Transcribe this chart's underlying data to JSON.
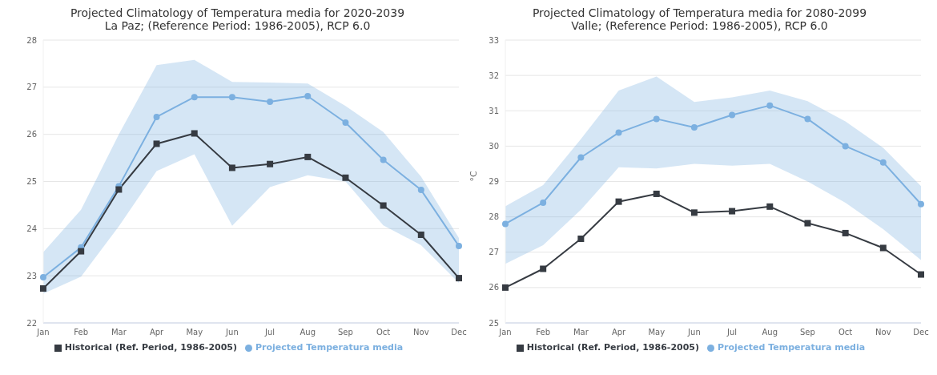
{
  "chart_data": [
    {
      "type": "line",
      "title": "Projected Climatology of Temperatura media for 2020-2039",
      "subtitle": "La Paz; (Reference Period: 1986-2005), RCP 6.0",
      "categories": [
        "Jan",
        "Feb",
        "Mar",
        "Apr",
        "May",
        "Jun",
        "Jul",
        "Aug",
        "Sep",
        "Oct",
        "Nov",
        "Dec"
      ],
      "ylim": [
        22,
        28
      ],
      "yticks": [
        22,
        23,
        24,
        25,
        26,
        27,
        28
      ],
      "grid": "y",
      "legend": "bottom",
      "series": [
        {
          "name": "Projected Temperatura media",
          "color": "#7cb0e0",
          "marker": "circle",
          "values": [
            22.97,
            23.6,
            24.9,
            26.37,
            26.79,
            26.79,
            26.69,
            26.81,
            26.25,
            25.46,
            24.82,
            23.63
          ],
          "lower": [
            22.62,
            22.98,
            24.05,
            25.22,
            25.58,
            24.06,
            24.88,
            25.13,
            25.0,
            24.07,
            23.65,
            22.85
          ],
          "upper": [
            23.5,
            24.4,
            26.0,
            27.47,
            27.58,
            27.11,
            27.1,
            27.08,
            26.6,
            26.05,
            25.1,
            23.8
          ]
        },
        {
          "name": "Historical (Ref. Period, 1986-2005)",
          "color": "#363b42",
          "marker": "square",
          "values": [
            22.73,
            23.52,
            24.83,
            25.8,
            26.02,
            25.29,
            25.37,
            25.52,
            25.08,
            24.49,
            23.87,
            22.95
          ]
        }
      ]
    },
    {
      "type": "line",
      "title": "Projected Climatology of Temperatura media for 2080-2099",
      "subtitle": "Valle; (Reference Period: 1986-2005), RCP 6.0",
      "ylabel": "°C",
      "categories": [
        "Jan",
        "Feb",
        "Mar",
        "Apr",
        "May",
        "Jun",
        "Jul",
        "Aug",
        "Sep",
        "Oct",
        "Nov",
        "Dec"
      ],
      "ylim": [
        25,
        33
      ],
      "yticks": [
        25,
        26,
        27,
        28,
        29,
        30,
        31,
        32,
        33
      ],
      "grid": "y",
      "legend": "bottom",
      "series": [
        {
          "name": "Projected Temperatura media",
          "color": "#7cb0e0",
          "marker": "circle",
          "values": [
            27.8,
            28.4,
            29.68,
            30.38,
            30.77,
            30.53,
            30.88,
            31.15,
            30.77,
            30.0,
            29.54,
            28.36
          ],
          "lower": [
            26.67,
            27.2,
            28.2,
            29.4,
            29.37,
            29.5,
            29.45,
            29.5,
            29.0,
            28.4,
            27.65,
            26.78
          ],
          "upper": [
            28.3,
            28.9,
            30.2,
            31.57,
            31.97,
            31.25,
            31.38,
            31.57,
            31.27,
            30.7,
            29.95,
            28.87
          ]
        },
        {
          "name": "Historical (Ref. Period, 1986-2005)",
          "color": "#363b42",
          "marker": "square",
          "values": [
            26.0,
            26.53,
            27.38,
            28.43,
            28.65,
            28.12,
            28.16,
            28.29,
            27.82,
            27.54,
            27.12,
            26.37
          ]
        }
      ]
    }
  ]
}
